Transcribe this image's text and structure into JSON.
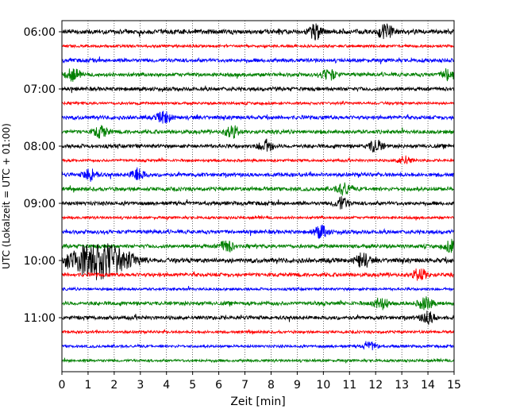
{
  "chart_data": {
    "type": "line",
    "title": "",
    "xlabel": "Zeit  [min]",
    "ylabel": "UTC (Lokalzeit = UTC + 01:00)",
    "xlim": [
      0,
      15
    ],
    "x_ticks": [
      "0",
      "1",
      "2",
      "3",
      "4",
      "5",
      "6",
      "7",
      "8",
      "9",
      "10",
      "11",
      "12",
      "13",
      "14",
      "15"
    ],
    "y_tick_labels": [
      "06:00",
      "07:00",
      "08:00",
      "09:00",
      "10:00",
      "11:00"
    ],
    "grid": "vertical dotted",
    "trace_colors": [
      "#000000",
      "#ff0000",
      "#0000ff",
      "#008000"
    ],
    "traces": [
      {
        "start": "06:00",
        "color": "#000000",
        "amplitude": "high",
        "events_min": [
          9.7,
          12.4
        ]
      },
      {
        "start": "06:15",
        "color": "#ff0000",
        "amplitude": "low",
        "events_min": []
      },
      {
        "start": "06:30",
        "color": "#0000ff",
        "amplitude": "medium",
        "events_min": []
      },
      {
        "start": "06:45",
        "color": "#008000",
        "amplitude": "medium",
        "events_min": [
          0.4,
          10.2,
          14.8
        ]
      },
      {
        "start": "07:00",
        "color": "#000000",
        "amplitude": "medium",
        "events_min": []
      },
      {
        "start": "07:15",
        "color": "#ff0000",
        "amplitude": "low",
        "events_min": []
      },
      {
        "start": "07:30",
        "color": "#0000ff",
        "amplitude": "medium",
        "events_min": [
          3.9
        ]
      },
      {
        "start": "07:45",
        "color": "#008000",
        "amplitude": "medium",
        "events_min": [
          1.5,
          6.5
        ]
      },
      {
        "start": "08:00",
        "color": "#000000",
        "amplitude": "medium",
        "events_min": [
          7.8,
          12.0
        ]
      },
      {
        "start": "08:15",
        "color": "#ff0000",
        "amplitude": "low",
        "events_min": [
          13.1
        ]
      },
      {
        "start": "08:30",
        "color": "#0000ff",
        "amplitude": "medium",
        "events_min": [
          1.1,
          2.9
        ]
      },
      {
        "start": "08:45",
        "color": "#008000",
        "amplitude": "medium",
        "events_min": [
          10.8
        ]
      },
      {
        "start": "09:00",
        "color": "#000000",
        "amplitude": "medium",
        "events_min": [
          10.7
        ]
      },
      {
        "start": "09:15",
        "color": "#ff0000",
        "amplitude": "low",
        "events_min": []
      },
      {
        "start": "09:30",
        "color": "#0000ff",
        "amplitude": "medium",
        "events_min": [
          9.9
        ]
      },
      {
        "start": "09:45",
        "color": "#008000",
        "amplitude": "medium",
        "events_min": [
          6.3,
          14.9
        ]
      },
      {
        "start": "10:00",
        "color": "#000000",
        "amplitude": "high",
        "events_min": [
          1.4,
          11.5
        ]
      },
      {
        "start": "10:15",
        "color": "#ff0000",
        "amplitude": "medium",
        "events_min": [
          13.7
        ]
      },
      {
        "start": "10:30",
        "color": "#0000ff",
        "amplitude": "low",
        "events_min": []
      },
      {
        "start": "10:45",
        "color": "#008000",
        "amplitude": "medium",
        "events_min": [
          12.2,
          13.9
        ]
      },
      {
        "start": "11:00",
        "color": "#000000",
        "amplitude": "medium",
        "events_min": [
          14.0
        ]
      },
      {
        "start": "11:15",
        "color": "#ff0000",
        "amplitude": "low",
        "events_min": []
      },
      {
        "start": "11:30",
        "color": "#0000ff",
        "amplitude": "low",
        "events_min": [
          11.8
        ]
      },
      {
        "start": "11:45",
        "color": "#008000",
        "amplitude": "low",
        "events_min": []
      }
    ]
  }
}
